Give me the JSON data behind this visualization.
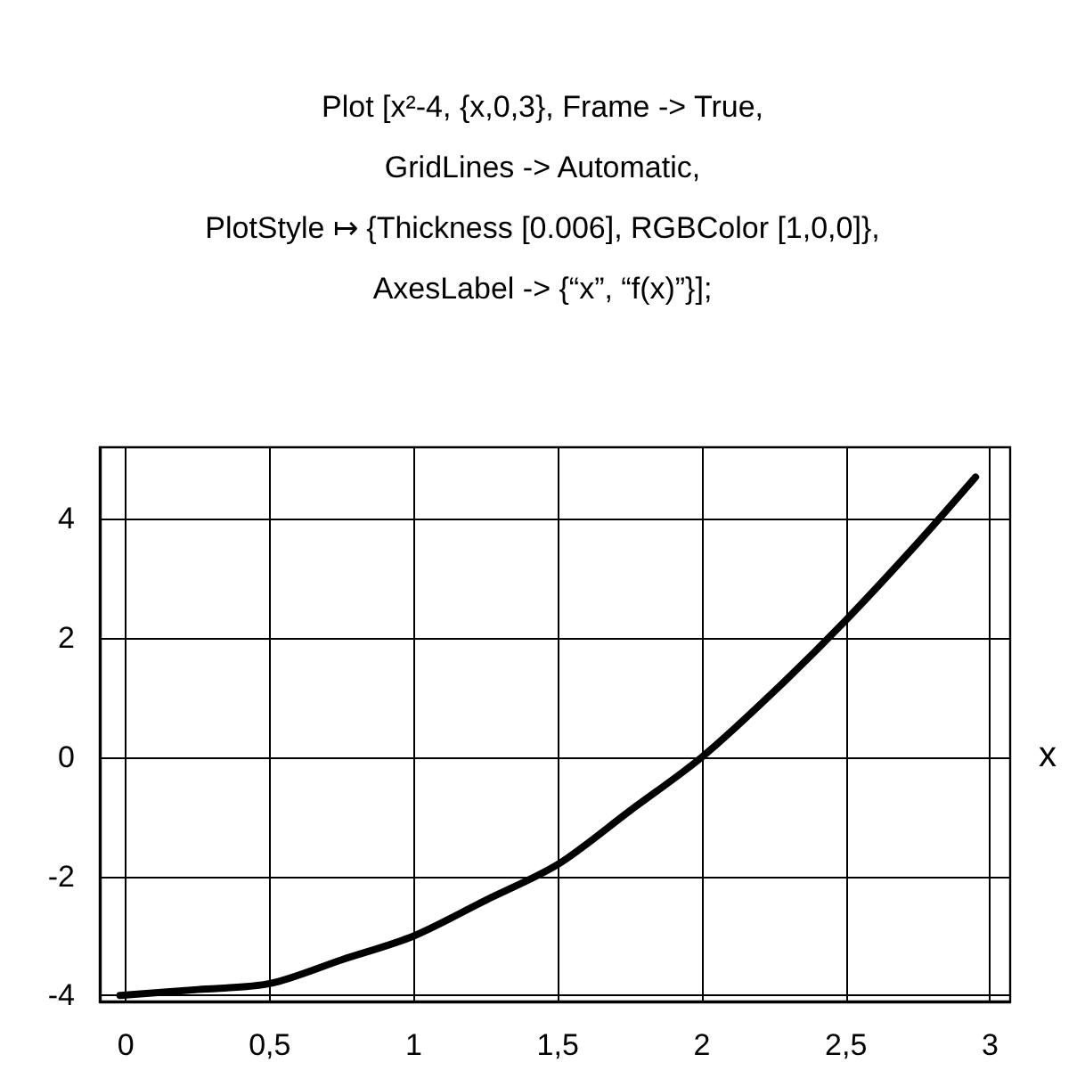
{
  "chart_data": {
    "type": "line",
    "title": "Plot [x²-4, {x,0,3}, Frame -> True,\nGridLines -> Automatic,\nPlotStyle ↦ {Thickness [0.006], RGBColor [1,0,0]},\nAxesLabel -> {“x”, “f(x)”}];",
    "xlabel": "x",
    "x": [
      -0.02,
      0.25,
      0.5,
      0.75,
      1,
      1.25,
      1.5,
      1.75,
      2,
      2.25,
      2.5,
      2.75,
      2.95
    ],
    "series": [
      {
        "color": "#000000",
        "values": [
          -4,
          -3.9,
          -3.8,
          -3.4,
          -3,
          -2.4,
          -1.8,
          -0.9,
          0,
          1.1,
          2.3,
          3.6,
          4.7
        ]
      }
    ],
    "xlim": [
      -0.09,
      3.07
    ],
    "ylim": [
      -4.1,
      5.2
    ],
    "xticks": [
      {
        "value": 0,
        "label": "0"
      },
      {
        "value": 0.5,
        "label": "0,5"
      },
      {
        "value": 1,
        "label": "1"
      },
      {
        "value": 1.5,
        "label": "1,5"
      },
      {
        "value": 2,
        "label": "2"
      },
      {
        "value": 2.5,
        "label": "2,5"
      },
      {
        "value": 3,
        "label": "3"
      }
    ],
    "yticks": [
      -4,
      -2,
      0,
      2,
      4
    ],
    "grid": true,
    "marker": "none",
    "line_style": "solid"
  }
}
